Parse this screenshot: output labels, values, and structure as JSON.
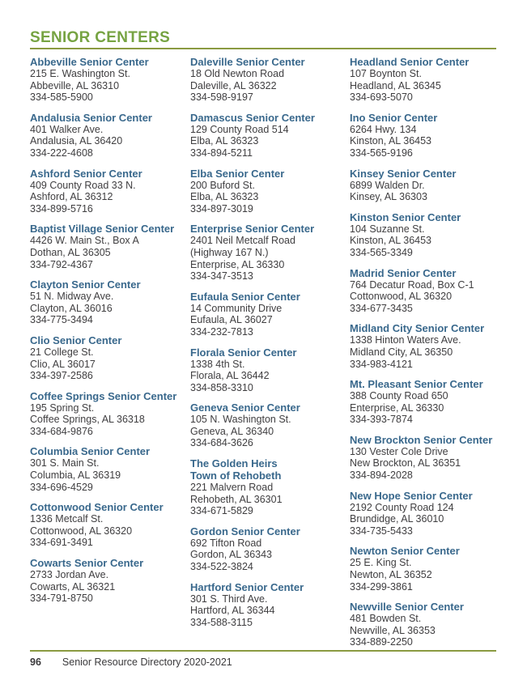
{
  "colors": {
    "heading_green": "#76a342",
    "rule_green": "#8a9a41",
    "title_blue": "#39688c",
    "body_text": "#3f3e40"
  },
  "header": {
    "title": "SENIOR CENTERS"
  },
  "columns": [
    {
      "entries": [
        {
          "name": "Abbeville Senior Center",
          "lines": [
            "215 E. Washington St.",
            "Abbeville, AL 36310",
            "334-585-5900"
          ]
        },
        {
          "name": "Andalusia Senior Center",
          "lines": [
            "401 Walker Ave.",
            "Andalusia, AL 36420",
            "334-222-4608"
          ]
        },
        {
          "name": "Ashford Senior Center",
          "lines": [
            "409 County Road 33 N.",
            "Ashford, AL 36312",
            "334-899-5716"
          ]
        },
        {
          "name": "Baptist Village Senior Center",
          "lines": [
            "4426 W. Main St., Box A",
            "Dothan, AL 36305",
            "334-792-4367"
          ]
        },
        {
          "name": "Clayton Senior Center",
          "lines": [
            "51 N. Midway Ave.",
            "Clayton, AL 36016",
            "334-775-3494"
          ]
        },
        {
          "name": "Clio Senior Center",
          "lines": [
            "21 College St.",
            "Clio, AL 36017",
            "334-397-2586"
          ]
        },
        {
          "name": "Coffee Springs Senior Center",
          "lines": [
            "195 Spring St.",
            "Coffee Springs, AL 36318",
            "334-684-9876"
          ]
        },
        {
          "name": "Columbia Senior Center",
          "lines": [
            "301 S. Main St.",
            "Columbia, AL 36319",
            "334-696-4529"
          ]
        },
        {
          "name": "Cottonwood Senior Center",
          "lines": [
            "1336 Metcalf St.",
            "Cottonwood, AL 36320",
            "334-691-3491"
          ]
        },
        {
          "name": "Cowarts Senior Center",
          "lines": [
            "2733 Jordan Ave.",
            "Cowarts, AL 36321",
            "334-791-8750"
          ]
        }
      ]
    },
    {
      "entries": [
        {
          "name": "Daleville Senior Center",
          "lines": [
            "18 Old Newton Road",
            "Daleville, AL 36322",
            "334-598-9197"
          ]
        },
        {
          "name": "Damascus Senior Center",
          "lines": [
            "129 County Road 514",
            "Elba, AL 36323",
            "334-894-5211"
          ]
        },
        {
          "name": "Elba Senior Center",
          "lines": [
            "200 Buford St.",
            "Elba, AL 36323",
            "334-897-3019"
          ]
        },
        {
          "name": "Enterprise Senior Center",
          "lines": [
            "2401 Neil Metcalf Road",
            "(Highway 167 N.)",
            "Enterprise, AL 36330",
            "334-347-3513"
          ]
        },
        {
          "name": "Eufaula Senior Center",
          "lines": [
            "14 Community Drive",
            "Eufaula, AL 36027",
            "334-232-7813"
          ]
        },
        {
          "name": "Florala Senior Center",
          "lines": [
            "1338 4th St.",
            "Florala, AL 36442",
            "334-858-3310"
          ]
        },
        {
          "name": "Geneva Senior Center",
          "lines": [
            "105 N. Washington St.",
            "Geneva, AL 36340",
            "334-684-3626"
          ]
        },
        {
          "name": "The Golden Heirs\nTown of Rehobeth",
          "lines": [
            "221 Malvern Road",
            "Rehobeth, AL 36301",
            "334-671-5829"
          ]
        },
        {
          "name": "Gordon Senior Center",
          "lines": [
            "692 Tifton Road",
            "Gordon, AL 36343",
            "334-522-3824"
          ]
        },
        {
          "name": "Hartford Senior Center",
          "lines": [
            "301 S. Third Ave.",
            "Hartford, AL 36344",
            "334-588-3115"
          ]
        }
      ]
    },
    {
      "entries": [
        {
          "name": "Headland Senior Center",
          "lines": [
            "107 Boynton St.",
            "Headland, AL 36345",
            "334-693-5070"
          ]
        },
        {
          "name": "Ino Senior Center",
          "lines": [
            "6264 Hwy. 134",
            "Kinston, AL 36453",
            "334-565-9196"
          ]
        },
        {
          "name": "Kinsey Senior Center",
          "lines": [
            "6899 Walden Dr.",
            "Kinsey, AL 36303"
          ]
        },
        {
          "name": "Kinston Senior Center",
          "lines": [
            "104 Suzanne St.",
            "Kinston, AL 36453",
            "334-565-3349"
          ]
        },
        {
          "name": "Madrid Senior Center",
          "lines": [
            "764 Decatur Road, Box C-1",
            "Cottonwood, AL 36320",
            "334-677-3435"
          ]
        },
        {
          "name": "Midland City Senior Center",
          "lines": [
            "1338 Hinton Waters Ave.",
            "Midland City, AL 36350",
            "334-983-4121"
          ]
        },
        {
          "name": "Mt. Pleasant Senior Center",
          "lines": [
            "388 County Road 650",
            "Enterprise, AL 36330",
            "334-393-7874"
          ]
        },
        {
          "name": "New Brockton Senior Center",
          "lines": [
            "130 Vester Cole Drive",
            "New Brockton, AL 36351",
            "334-894-2028"
          ]
        },
        {
          "name": "New Hope Senior Center",
          "lines": [
            "2192 County Road 124",
            "Brundidge, AL 36010",
            "334-735-5433"
          ]
        },
        {
          "name": "Newton Senior Center",
          "lines": [
            "25 E. King St.",
            "Newton, AL 36352",
            "334-299-3861"
          ]
        },
        {
          "name": "Newville Senior Center",
          "lines": [
            "481 Bowden St.",
            "Newville, AL 36353",
            "334-889-2250"
          ]
        }
      ]
    }
  ],
  "footer": {
    "page_number": "96",
    "text": "Senior Resource Directory 2020-2021"
  }
}
